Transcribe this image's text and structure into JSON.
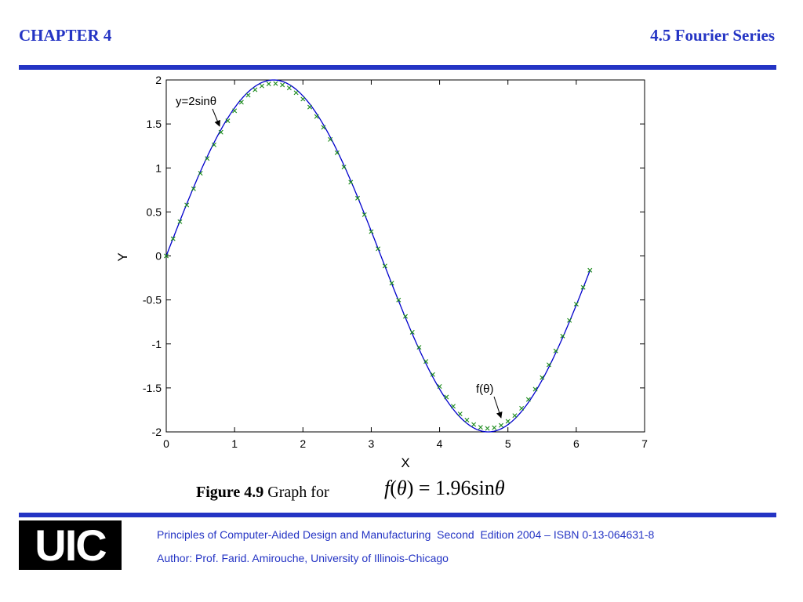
{
  "header": {
    "chapter": "CHAPTER 4",
    "section": "4.5 Fourier Series",
    "color": "#2434c4"
  },
  "caption": {
    "figure_label": "Figure 4.9",
    "text": "Graph for",
    "formula_f": "f",
    "formula_open": "(",
    "formula_theta": "θ",
    "formula_close": ")",
    "formula_eq": " = 1.96sin",
    "formula_theta2": "θ"
  },
  "logo": {
    "text": "UIC"
  },
  "footer": {
    "line1": "Principles of Computer-Aided Design and Manufacturing  Second  Edition 2004 – ISBN 0-13-064631-8",
    "line2": "Author: Prof. Farid. Amirouche, University of Illinois-Chicago"
  },
  "chart_data": {
    "type": "line",
    "xlabel": "X",
    "ylabel": "Y",
    "xlim": [
      0,
      7
    ],
    "ylim": [
      -2,
      2
    ],
    "xticks": [
      0,
      1,
      2,
      3,
      4,
      5,
      6,
      7
    ],
    "yticks": [
      2,
      1.5,
      1,
      0.5,
      0,
      -0.5,
      -1,
      -1.5,
      -2
    ],
    "ytick_labels": [
      "2",
      "1.5",
      "1",
      "0.5",
      "0",
      "-0.5",
      "-1",
      "-1.5",
      "-2"
    ],
    "grid": false,
    "series": [
      {
        "name": "y=2sinθ",
        "style": "solid line",
        "color": "#0000cc",
        "function": "2*sin(x)",
        "x_range": [
          0,
          6.2
        ]
      },
      {
        "name": "f(θ)",
        "style": "x markers",
        "color": "#1a8a1a",
        "function": "1.96*sin(x)",
        "x_range": [
          0,
          6.2
        ],
        "x_step": 0.1
      }
    ],
    "annotations": [
      {
        "text": "y=2sinθ",
        "points_to_x": 0.8
      },
      {
        "text": "f(θ)",
        "points_to_x": 4.9
      }
    ]
  }
}
